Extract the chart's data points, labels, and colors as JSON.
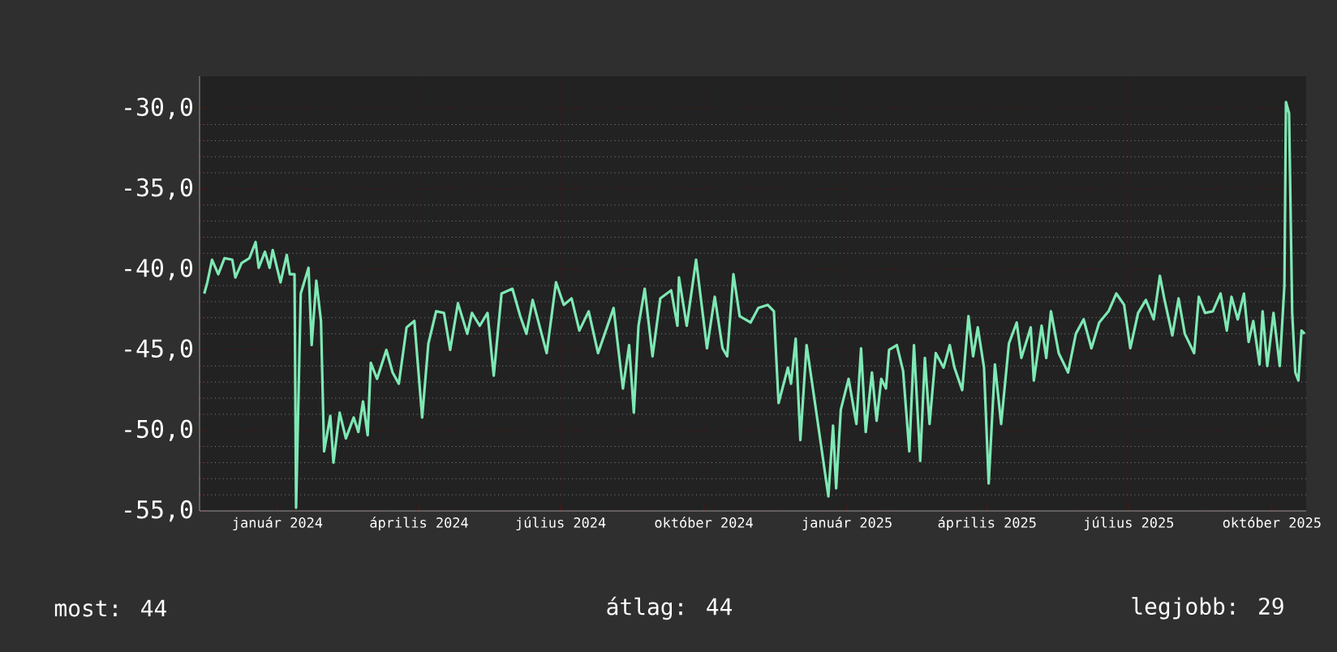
{
  "chart_data": {
    "type": "line",
    "color": "#7ee8b4",
    "grid": true,
    "xlim": [
      "2023-11-12",
      "2025-10-23"
    ],
    "xticks": [
      {
        "value": "2024-01-01",
        "label": "január 2024"
      },
      {
        "value": "2024-04-01",
        "label": "április 2024"
      },
      {
        "value": "2024-07-01",
        "label": "július 2024"
      },
      {
        "value": "2024-10-01",
        "label": "október 2024"
      },
      {
        "value": "2025-01-01",
        "label": "január 2025"
      },
      {
        "value": "2025-04-01",
        "label": "április 2025"
      },
      {
        "value": "2025-07-01",
        "label": "július 2025"
      },
      {
        "value": "2025-10-01",
        "label": "október 2025"
      }
    ],
    "ylim": [
      -55,
      -28
    ],
    "yticks": [
      {
        "value": -55,
        "label": "-55,0"
      },
      {
        "value": -50,
        "label": "-50,0"
      },
      {
        "value": -45,
        "label": "-45,0"
      },
      {
        "value": -40,
        "label": "-40,0"
      },
      {
        "value": -35,
        "label": "-35,0"
      },
      {
        "value": -30,
        "label": "-30,0"
      }
    ],
    "x": [
      "2023-11-15",
      "2023-11-17",
      "2023-11-20",
      "2023-11-24",
      "2023-11-28",
      "2023-12-03",
      "2023-12-05",
      "2023-12-09",
      "2023-12-14",
      "2023-12-18",
      "2023-12-20",
      "2023-12-24",
      "2023-12-27",
      "2023-12-29",
      "2024-01-03",
      "2024-01-07",
      "2024-01-09",
      "2024-01-12",
      "2024-01-13",
      "2024-01-16",
      "2024-01-21",
      "2024-01-23",
      "2024-01-26",
      "2024-01-29",
      "2024-01-31",
      "2024-02-04",
      "2024-02-06",
      "2024-02-10",
      "2024-02-14",
      "2024-02-19",
      "2024-02-22",
      "2024-02-25",
      "2024-02-28",
      "2024-03-01",
      "2024-03-05",
      "2024-03-11",
      "2024-03-15",
      "2024-03-19",
      "2024-03-24",
      "2024-03-29",
      "2024-04-03",
      "2024-04-07",
      "2024-04-12",
      "2024-04-17",
      "2024-04-21",
      "2024-04-26",
      "2024-05-02",
      "2024-05-05",
      "2024-05-10",
      "2024-05-15",
      "2024-05-19",
      "2024-05-24",
      "2024-05-31",
      "2024-06-05",
      "2024-06-09",
      "2024-06-13",
      "2024-06-22",
      "2024-06-28",
      "2024-07-03",
      "2024-07-08",
      "2024-07-13",
      "2024-07-19",
      "2024-07-25",
      "2024-08-04",
      "2024-08-10",
      "2024-08-14",
      "2024-08-17",
      "2024-08-20",
      "2024-08-24",
      "2024-08-29",
      "2024-09-03",
      "2024-09-10",
      "2024-09-14",
      "2024-09-15",
      "2024-09-20",
      "2024-09-26",
      "2024-10-03",
      "2024-10-08",
      "2024-10-13",
      "2024-10-16",
      "2024-10-20",
      "2024-10-24",
      "2024-10-31",
      "2024-11-05",
      "2024-11-11",
      "2024-11-15",
      "2024-11-18",
      "2024-11-24",
      "2024-11-26",
      "2024-11-29",
      "2024-12-02",
      "2024-12-06",
      "2024-12-12",
      "2024-12-20",
      "2024-12-23",
      "2024-12-25",
      "2024-12-28",
      "2025-01-02",
      "2025-01-07",
      "2025-01-10",
      "2025-01-13",
      "2025-01-17",
      "2025-01-20",
      "2025-01-23",
      "2025-01-26",
      "2025-01-28",
      "2025-02-02",
      "2025-02-06",
      "2025-02-10",
      "2025-02-13",
      "2025-02-17",
      "2025-02-20",
      "2025-02-23",
      "2025-02-27",
      "2025-03-04",
      "2025-03-08",
      "2025-03-11",
      "2025-03-16",
      "2025-03-20",
      "2025-03-23",
      "2025-03-26",
      "2025-03-30",
      "2025-04-02",
      "2025-04-06",
      "2025-04-10",
      "2025-04-15",
      "2025-04-20",
      "2025-04-23",
      "2025-04-29",
      "2025-05-01",
      "2025-05-06",
      "2025-05-09",
      "2025-05-12",
      "2025-05-17",
      "2025-05-23",
      "2025-05-28",
      "2025-06-02",
      "2025-06-07",
      "2025-06-12",
      "2025-06-18",
      "2025-06-23",
      "2025-06-28",
      "2025-07-02",
      "2025-07-07",
      "2025-07-12",
      "2025-07-17",
      "2025-07-21",
      "2025-07-24",
      "2025-07-29",
      "2025-08-02",
      "2025-08-06",
      "2025-08-12",
      "2025-08-15",
      "2025-08-19",
      "2025-08-24",
      "2025-08-29",
      "2025-09-02",
      "2025-09-05",
      "2025-09-09",
      "2025-09-13",
      "2025-09-16",
      "2025-09-19",
      "2025-09-23",
      "2025-09-25",
      "2025-09-28",
      "2025-10-02",
      "2025-10-06",
      "2025-10-09",
      "2025-10-10",
      "2025-10-12",
      "2025-10-14",
      "2025-10-16",
      "2025-10-18",
      "2025-10-20",
      "2025-10-22"
    ],
    "values": [
      -41.5,
      -40.8,
      -39.4,
      -40.3,
      -39.3,
      -39.4,
      -40.5,
      -39.6,
      -39.3,
      -38.3,
      -39.9,
      -38.9,
      -39.9,
      -38.8,
      -40.8,
      -39.1,
      -40.3,
      -40.3,
      -54.8,
      -41.5,
      -39.9,
      -44.7,
      -40.7,
      -43.2,
      -51.3,
      -49.1,
      -52.0,
      -48.9,
      -50.5,
      -49.2,
      -50.1,
      -48.2,
      -50.3,
      -45.8,
      -46.8,
      -45.0,
      -46.4,
      -47.1,
      -43.6,
      -43.2,
      -49.2,
      -44.6,
      -42.6,
      -42.7,
      -45.0,
      -42.1,
      -44.0,
      -42.7,
      -43.5,
      -42.7,
      -46.6,
      -41.5,
      -41.2,
      -42.9,
      -44.0,
      -41.9,
      -45.2,
      -40.8,
      -42.2,
      -41.8,
      -43.8,
      -42.6,
      -45.2,
      -42.4,
      -47.4,
      -44.7,
      -48.9,
      -43.5,
      -41.2,
      -45.4,
      -41.8,
      -41.3,
      -43.5,
      -40.5,
      -43.5,
      -39.4,
      -44.9,
      -41.7,
      -44.9,
      -45.4,
      -40.3,
      -42.9,
      -43.3,
      -42.4,
      -42.2,
      -42.6,
      -48.3,
      -46.1,
      -47.1,
      -44.3,
      -50.6,
      -44.7,
      -48.7,
      -54.1,
      -49.7,
      -53.6,
      -48.7,
      -46.8,
      -49.6,
      -44.9,
      -50.1,
      -46.4,
      -49.4,
      -46.8,
      -47.4,
      -45.0,
      -44.7,
      -46.3,
      -51.3,
      -44.7,
      -51.9,
      -45.5,
      -49.6,
      -45.2,
      -46.1,
      -44.7,
      -46.1,
      -47.5,
      -42.9,
      -45.4,
      -43.6,
      -46.1,
      -53.3,
      -45.9,
      -49.6,
      -44.6,
      -43.3,
      -45.5,
      -43.6,
      -46.9,
      -43.5,
      -45.5,
      -42.6,
      -45.2,
      -46.4,
      -44.0,
      -43.1,
      -44.9,
      -43.3,
      -42.6,
      -41.5,
      -42.2,
      -44.9,
      -42.7,
      -41.9,
      -43.1,
      -40.4,
      -41.9,
      -44.1,
      -41.8,
      -44.0,
      -45.2,
      -41.7,
      -42.7,
      -42.6,
      -41.5,
      -43.8,
      -41.7,
      -43.1,
      -41.5,
      -44.5,
      -43.2,
      -45.9,
      -42.6,
      -46.0,
      -42.7,
      -46.0,
      -41.0,
      -29.6,
      -30.3,
      -42.7,
      -46.4,
      -46.9,
      -43.8,
      -44.0
    ],
    "annotations": [
      "most: 44",
      "átlag: 44",
      "legjobb: 29"
    ]
  }
}
